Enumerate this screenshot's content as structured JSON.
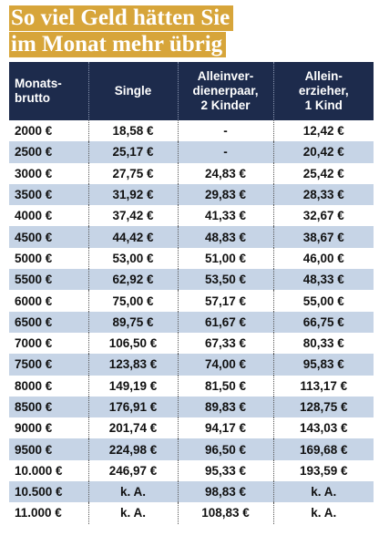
{
  "title": [
    "So viel Geld hätten Sie",
    "im Monat mehr übrig"
  ],
  "table": {
    "header": [
      [
        "Monats-",
        "brutto"
      ],
      [
        "Single"
      ],
      [
        "Alleinver-",
        "dienerpaar,",
        "2 Kinder"
      ],
      [
        "Allein-",
        "erzieher,",
        "1 Kind"
      ]
    ],
    "rows": [
      [
        "2000 €",
        "18,58 €",
        "-",
        "12,42 €"
      ],
      [
        "2500 €",
        "25,17 €",
        "-",
        "20,42 €"
      ],
      [
        "3000 €",
        "27,75 €",
        "24,83 €",
        "25,42 €"
      ],
      [
        "3500 €",
        "31,92 €",
        "29,83 €",
        "28,33 €"
      ],
      [
        "4000 €",
        "37,42 €",
        "41,33 €",
        "32,67 €"
      ],
      [
        "4500 €",
        "44,42 €",
        "48,83 €",
        "38,67 €"
      ],
      [
        "5000 €",
        "53,00 €",
        "51,00 €",
        "46,00 €"
      ],
      [
        "5500 €",
        "62,92 €",
        "53,50 €",
        "48,33 €"
      ],
      [
        "6000 €",
        "75,00 €",
        "57,17 €",
        "55,00 €"
      ],
      [
        "6500 €",
        "89,75 €",
        "61,67 €",
        "66,75 €"
      ],
      [
        "7000 €",
        "106,50 €",
        "67,33 €",
        "80,33 €"
      ],
      [
        "7500 €",
        "123,83 €",
        "74,00 €",
        "95,83 €"
      ],
      [
        "8000 €",
        "149,19 €",
        "81,50 €",
        "113,17 €"
      ],
      [
        "8500 €",
        "176,91 €",
        "89,83 €",
        "128,75 €"
      ],
      [
        "9000 €",
        "201,74 €",
        "94,17 €",
        "143,03 €"
      ],
      [
        "9500 €",
        "224,98 €",
        "96,50 €",
        "169,68 €"
      ],
      [
        "10.000 €",
        "246,97 €",
        "95,33 €",
        "193,59 €"
      ],
      [
        "10.500 €",
        "k. A.",
        "98,83 €",
        "k. A."
      ],
      [
        "11.000 €",
        "k. A.",
        "108,83 €",
        "k. A."
      ]
    ]
  }
}
